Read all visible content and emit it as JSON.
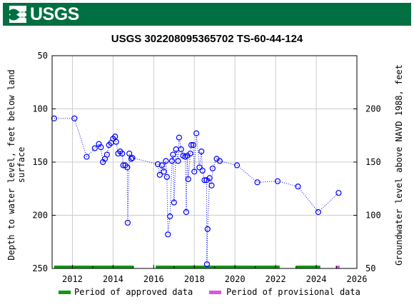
{
  "header": {
    "agency_logo_text": "USGS",
    "colors": {
      "banner": "#006f41",
      "logo_text": "#ffffff"
    }
  },
  "chart_data": {
    "type": "scatter",
    "title": "USGS 302208095365702 TS-60-44-124",
    "ylabel_left": [
      "Depth to water level, feet below land",
      "surface"
    ],
    "ylabel_right": "Groundwater level above NAVD 1988, feet",
    "x_range": [
      2011,
      2026
    ],
    "x_ticks": [
      2012,
      2014,
      2016,
      2018,
      2020,
      2022,
      2024,
      2026
    ],
    "x_tick_labels": [
      "2012",
      "2014",
      "2016",
      "2018",
      "2020",
      "2022",
      "2024",
      "2026"
    ],
    "y_left_range": [
      50,
      250
    ],
    "y_left_inverted": true,
    "y_left_ticks": [
      50,
      100,
      150,
      200,
      250
    ],
    "y_left_tick_labels": [
      "50",
      "100",
      "150",
      "200",
      "250"
    ],
    "y_right_ticks": [
      50,
      100,
      150,
      200
    ],
    "y_right_tick_labels": [
      "50",
      "100",
      "150",
      "200"
    ],
    "grid": true,
    "marker_color": "#0000ff",
    "line_style": "dotted",
    "series": [
      {
        "points": [
          [
            2011.1,
            109
          ],
          [
            2012.1,
            109
          ],
          [
            2012.7,
            145
          ],
          [
            2013.1,
            137
          ],
          [
            2013.3,
            133
          ],
          [
            2013.4,
            136
          ],
          [
            2013.5,
            150
          ],
          [
            2013.6,
            147
          ],
          [
            2013.7,
            143
          ],
          [
            2013.8,
            134
          ],
          [
            2013.9,
            132
          ],
          [
            2014.0,
            128
          ],
          [
            2014.1,
            126
          ],
          [
            2014.15,
            131
          ],
          [
            2014.25,
            142
          ],
          [
            2014.35,
            140
          ],
          [
            2014.45,
            142
          ],
          [
            2014.5,
            153
          ],
          [
            2014.6,
            153
          ],
          [
            2014.7,
            155
          ],
          [
            2014.72,
            207
          ],
          [
            2014.8,
            142
          ],
          [
            2014.9,
            147
          ],
          [
            2014.95,
            146
          ],
          [
            2016.2,
            152
          ],
          [
            2016.3,
            162
          ],
          [
            2016.4,
            153
          ],
          [
            2016.5,
            159
          ],
          [
            2016.6,
            149
          ],
          [
            2016.65,
            164
          ],
          [
            2016.7,
            218
          ],
          [
            2016.8,
            201
          ],
          [
            2016.9,
            149
          ],
          [
            2016.95,
            143
          ],
          [
            2017.0,
            188
          ],
          [
            2017.1,
            138
          ],
          [
            2017.2,
            149
          ],
          [
            2017.25,
            127
          ],
          [
            2017.35,
            138
          ],
          [
            2017.45,
            144
          ],
          [
            2017.55,
            145
          ],
          [
            2017.6,
            197
          ],
          [
            2017.65,
            144
          ],
          [
            2017.7,
            166
          ],
          [
            2017.8,
            142
          ],
          [
            2017.85,
            134
          ],
          [
            2017.95,
            134
          ],
          [
            2018.0,
            159
          ],
          [
            2018.1,
            123
          ],
          [
            2018.25,
            155
          ],
          [
            2018.35,
            140
          ],
          [
            2018.4,
            158
          ],
          [
            2018.5,
            167
          ],
          [
            2018.6,
            167
          ],
          [
            2018.62,
            246
          ],
          [
            2018.65,
            213
          ],
          [
            2018.75,
            165
          ],
          [
            2018.85,
            172
          ],
          [
            2018.9,
            156
          ],
          [
            2019.1,
            147
          ],
          [
            2019.25,
            149
          ],
          [
            2020.1,
            153
          ],
          [
            2021.1,
            169
          ],
          [
            2022.1,
            168
          ],
          [
            2023.1,
            173
          ],
          [
            2024.1,
            197
          ],
          [
            2025.1,
            179
          ]
        ]
      }
    ],
    "approved_periods": [
      [
        2011.1,
        2015.0
      ],
      [
        2016.1,
        2022.2
      ],
      [
        2023.0,
        2024.2
      ]
    ],
    "provisional_periods": [
      [
        2024.95,
        2025.15
      ]
    ],
    "legend": {
      "placement": "bottom",
      "items": [
        {
          "label": "Period of approved data",
          "color": "#119911"
        },
        {
          "label": "Period of provisional data",
          "color": "#dd55dd"
        }
      ]
    }
  }
}
